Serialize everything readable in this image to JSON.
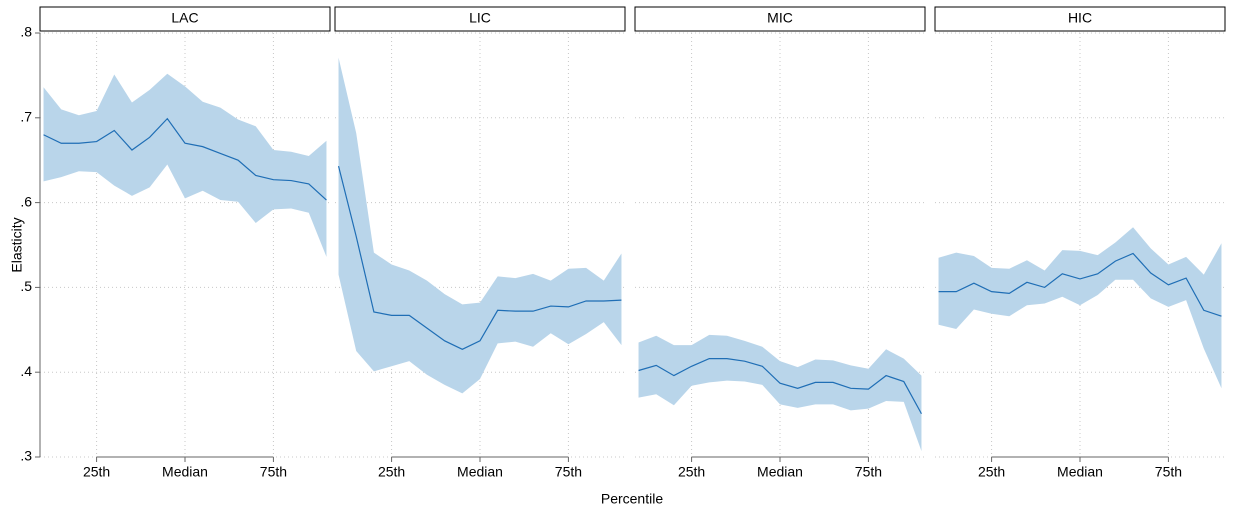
{
  "xlabel": "Percentile",
  "ylabel": "Elasticity",
  "chart_data": [
    {
      "type": "line",
      "title": "LAC",
      "color": "#1f6eb5",
      "band_color": "#b9d5ea",
      "grid": true,
      "xlim": [
        9,
        91
      ],
      "ylim": [
        0.3,
        0.8
      ],
      "show_y_axis": true,
      "xticks": [
        {
          "value": 25,
          "label": "25th"
        },
        {
          "value": 50,
          "label": "Median"
        },
        {
          "value": 75,
          "label": "75th"
        }
      ],
      "yticks": [
        {
          "value": 0.3,
          "label": ".3"
        },
        {
          "value": 0.4,
          "label": ".4"
        },
        {
          "value": 0.5,
          "label": ".5"
        },
        {
          "value": 0.6,
          "label": ".6"
        },
        {
          "value": 0.7,
          "label": ".7"
        },
        {
          "value": 0.8,
          "label": ".8"
        }
      ],
      "x": [
        10,
        15,
        20,
        25,
        30,
        35,
        40,
        45,
        50,
        55,
        60,
        65,
        70,
        75,
        80,
        85,
        90
      ],
      "values": [
        0.68,
        0.67,
        0.67,
        0.672,
        0.685,
        0.662,
        0.677,
        0.699,
        0.67,
        0.666,
        0.658,
        0.65,
        0.632,
        0.627,
        0.626,
        0.622,
        0.603
      ],
      "upper": [
        0.736,
        0.71,
        0.703,
        0.708,
        0.751,
        0.718,
        0.733,
        0.752,
        0.737,
        0.719,
        0.712,
        0.698,
        0.69,
        0.662,
        0.66,
        0.655,
        0.673
      ],
      "lower": [
        0.625,
        0.63,
        0.637,
        0.636,
        0.62,
        0.608,
        0.618,
        0.645,
        0.605,
        0.614,
        0.603,
        0.601,
        0.576,
        0.592,
        0.593,
        0.588,
        0.536
      ]
    },
    {
      "type": "line",
      "title": "LIC",
      "color": "#1f6eb5",
      "band_color": "#b9d5ea",
      "grid": true,
      "xlim": [
        9,
        91
      ],
      "ylim": [
        0.3,
        0.8
      ],
      "show_y_axis": false,
      "xticks": [
        {
          "value": 25,
          "label": "25th"
        },
        {
          "value": 50,
          "label": "Median"
        },
        {
          "value": 75,
          "label": "75th"
        }
      ],
      "yticks": [
        0.3,
        0.4,
        0.5,
        0.6,
        0.7,
        0.8
      ],
      "x": [
        10,
        15,
        20,
        25,
        30,
        35,
        40,
        45,
        50,
        55,
        60,
        65,
        70,
        75,
        80,
        85,
        90
      ],
      "values": [
        0.643,
        0.56,
        0.471,
        0.467,
        0.467,
        0.452,
        0.437,
        0.427,
        0.437,
        0.473,
        0.472,
        0.472,
        0.478,
        0.477,
        0.484,
        0.484,
        0.485
      ],
      "upper": [
        0.771,
        0.682,
        0.541,
        0.527,
        0.52,
        0.508,
        0.492,
        0.48,
        0.482,
        0.513,
        0.511,
        0.516,
        0.508,
        0.522,
        0.523,
        0.508,
        0.54
      ],
      "lower": [
        0.515,
        0.425,
        0.401,
        0.407,
        0.413,
        0.397,
        0.385,
        0.375,
        0.392,
        0.434,
        0.436,
        0.43,
        0.446,
        0.433,
        0.445,
        0.459,
        0.432
      ]
    },
    {
      "type": "line",
      "title": "MIC",
      "color": "#1f6eb5",
      "band_color": "#b9d5ea",
      "grid": true,
      "xlim": [
        9,
        91
      ],
      "ylim": [
        0.3,
        0.8
      ],
      "show_y_axis": false,
      "xticks": [
        {
          "value": 25,
          "label": "25th"
        },
        {
          "value": 50,
          "label": "Median"
        },
        {
          "value": 75,
          "label": "75th"
        }
      ],
      "yticks": [
        0.3,
        0.4,
        0.5,
        0.6,
        0.7,
        0.8
      ],
      "x": [
        10,
        15,
        20,
        25,
        30,
        35,
        40,
        45,
        50,
        55,
        60,
        65,
        70,
        75,
        80,
        85,
        90
      ],
      "values": [
        0.402,
        0.408,
        0.396,
        0.407,
        0.416,
        0.416,
        0.413,
        0.407,
        0.387,
        0.381,
        0.388,
        0.388,
        0.381,
        0.38,
        0.396,
        0.389,
        0.351
      ],
      "upper": [
        0.435,
        0.443,
        0.432,
        0.432,
        0.444,
        0.443,
        0.437,
        0.43,
        0.413,
        0.406,
        0.415,
        0.414,
        0.408,
        0.404,
        0.427,
        0.416,
        0.396
      ],
      "lower": [
        0.37,
        0.374,
        0.361,
        0.384,
        0.388,
        0.39,
        0.389,
        0.385,
        0.362,
        0.358,
        0.362,
        0.362,
        0.355,
        0.357,
        0.366,
        0.365,
        0.307
      ]
    },
    {
      "type": "line",
      "title": "HIC",
      "color": "#1f6eb5",
      "band_color": "#b9d5ea",
      "grid": true,
      "xlim": [
        9,
        91
      ],
      "ylim": [
        0.3,
        0.8
      ],
      "show_y_axis": false,
      "xticks": [
        {
          "value": 25,
          "label": "25th"
        },
        {
          "value": 50,
          "label": "Median"
        },
        {
          "value": 75,
          "label": "75th"
        }
      ],
      "yticks": [
        0.3,
        0.4,
        0.5,
        0.6,
        0.7,
        0.8
      ],
      "x": [
        10,
        15,
        20,
        25,
        30,
        35,
        40,
        45,
        50,
        55,
        60,
        65,
        70,
        75,
        80,
        85,
        90
      ],
      "values": [
        0.495,
        0.495,
        0.505,
        0.495,
        0.493,
        0.506,
        0.5,
        0.516,
        0.51,
        0.516,
        0.531,
        0.54,
        0.517,
        0.503,
        0.511,
        0.473,
        0.466
      ],
      "upper": [
        0.535,
        0.541,
        0.537,
        0.523,
        0.522,
        0.532,
        0.52,
        0.544,
        0.543,
        0.538,
        0.553,
        0.571,
        0.546,
        0.527,
        0.536,
        0.515,
        0.552
      ],
      "lower": [
        0.456,
        0.451,
        0.474,
        0.469,
        0.466,
        0.479,
        0.481,
        0.489,
        0.479,
        0.491,
        0.509,
        0.509,
        0.487,
        0.477,
        0.485,
        0.428,
        0.381
      ]
    }
  ]
}
